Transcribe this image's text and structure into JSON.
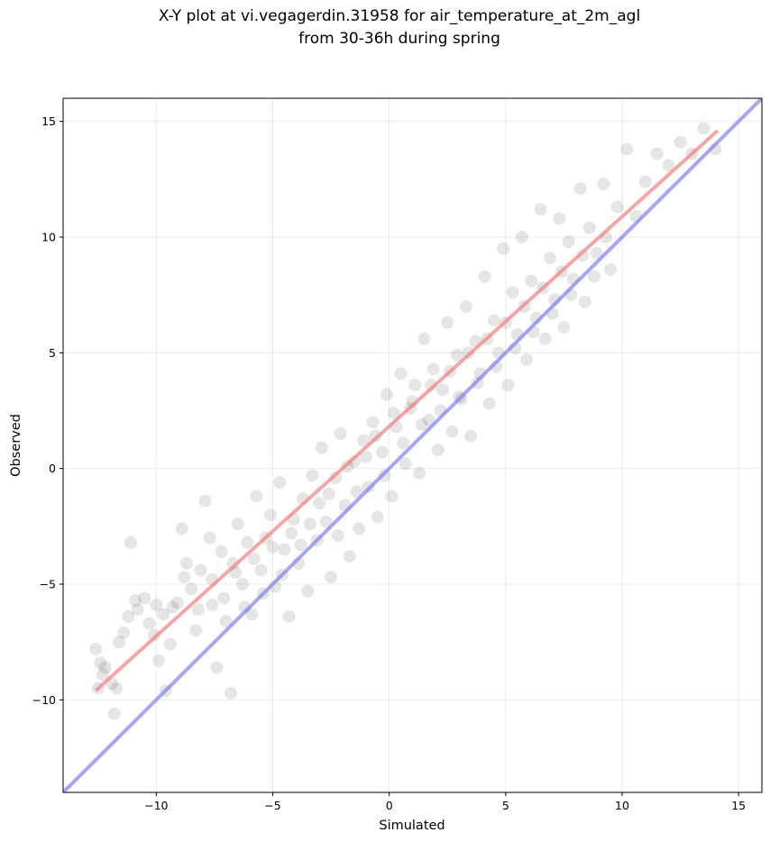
{
  "chart_data": {
    "type": "scatter",
    "title": "X-Y plot at vi.vegagerdin.31958 for air_temperature_at_2m_agl",
    "subtitle": "from 30-36h during spring",
    "xlabel": "Simulated",
    "ylabel": "Observed",
    "xlim": [
      -14,
      16
    ],
    "ylim": [
      -14,
      16
    ],
    "xticks": [
      -10,
      -5,
      0,
      5,
      10,
      15
    ],
    "yticks": [
      -10,
      -5,
      0,
      5,
      10,
      15
    ],
    "xtick_labels": [
      "−10",
      "−5",
      "0",
      "5",
      "10",
      "15"
    ],
    "ytick_labels": [
      "−10",
      "−5",
      "0",
      "5",
      "10",
      "15"
    ],
    "grid": true,
    "colors": {
      "points": "#000000",
      "fit_line": "#f08080",
      "identity_line": "#8080f0"
    },
    "fit_line": {
      "x": [
        -12.6,
        14.1
      ],
      "y": [
        -9.6,
        14.6
      ]
    },
    "identity_line": {
      "x": [
        -14,
        16
      ],
      "y": [
        -14,
        16
      ]
    },
    "series": [
      {
        "points": [
          [
            -12.5,
            -9.5
          ],
          [
            -12.3,
            -8.9
          ],
          [
            -12.4,
            -8.4
          ],
          [
            -12.6,
            -7.8
          ],
          [
            -11.7,
            -9.5
          ],
          [
            -11.8,
            -10.6
          ],
          [
            -11.6,
            -7.5
          ],
          [
            -11.2,
            -6.4
          ],
          [
            -11.1,
            -3.2
          ],
          [
            -10.9,
            -5.7
          ],
          [
            -10.5,
            -5.6
          ],
          [
            -10.3,
            -6.7
          ],
          [
            -10.1,
            -7.2
          ],
          [
            -9.9,
            -8.3
          ],
          [
            -9.7,
            -6.3
          ],
          [
            -9.6,
            -9.6
          ],
          [
            -9.3,
            -6.0
          ],
          [
            -9.1,
            -5.8
          ],
          [
            -8.9,
            -2.6
          ],
          [
            -8.7,
            -4.1
          ],
          [
            -8.5,
            -5.2
          ],
          [
            -8.3,
            -7.0
          ],
          [
            -8.1,
            -4.4
          ],
          [
            -7.9,
            -1.4
          ],
          [
            -7.7,
            -3.0
          ],
          [
            -7.6,
            -5.9
          ],
          [
            -7.4,
            -8.6
          ],
          [
            -7.2,
            -3.6
          ],
          [
            -7.0,
            -6.6
          ],
          [
            -6.8,
            -9.7
          ],
          [
            -6.7,
            -4.1
          ],
          [
            -6.5,
            -2.4
          ],
          [
            -6.3,
            -5.0
          ],
          [
            -6.1,
            -3.2
          ],
          [
            -5.9,
            -6.3
          ],
          [
            -5.7,
            -1.2
          ],
          [
            -5.5,
            -4.4
          ],
          [
            -5.3,
            -3.0
          ],
          [
            -5.1,
            -2.0
          ],
          [
            -4.9,
            -5.1
          ],
          [
            -4.7,
            -0.6
          ],
          [
            -4.5,
            -3.5
          ],
          [
            -4.3,
            -6.4
          ],
          [
            -4.1,
            -2.2
          ],
          [
            -3.9,
            -4.1
          ],
          [
            -3.7,
            -1.3
          ],
          [
            -3.5,
            -5.3
          ],
          [
            -3.3,
            -0.3
          ],
          [
            -3.1,
            -3.1
          ],
          [
            -2.9,
            0.9
          ],
          [
            -2.7,
            -2.3
          ],
          [
            -2.5,
            -4.7
          ],
          [
            -2.3,
            -0.4
          ],
          [
            -2.1,
            1.5
          ],
          [
            -1.9,
            -1.6
          ],
          [
            -1.7,
            -3.8
          ],
          [
            -1.5,
            0.3
          ],
          [
            -1.3,
            -2.6
          ],
          [
            -1.1,
            1.2
          ],
          [
            -0.9,
            -0.8
          ],
          [
            -0.7,
            2.0
          ],
          [
            -0.5,
            -2.1
          ],
          [
            -0.3,
            0.7
          ],
          [
            -0.1,
            3.2
          ],
          [
            0.1,
            -1.2
          ],
          [
            0.3,
            1.8
          ],
          [
            0.5,
            4.1
          ],
          [
            0.7,
            0.2
          ],
          [
            0.9,
            2.6
          ],
          [
            1.1,
            3.6
          ],
          [
            1.3,
            -0.2
          ],
          [
            1.5,
            5.6
          ],
          [
            1.7,
            2.1
          ],
          [
            1.9,
            4.3
          ],
          [
            2.1,
            0.8
          ],
          [
            2.3,
            3.4
          ],
          [
            2.5,
            6.3
          ],
          [
            2.7,
            1.6
          ],
          [
            2.9,
            4.9
          ],
          [
            3.1,
            3.0
          ],
          [
            3.3,
            7.0
          ],
          [
            3.5,
            1.4
          ],
          [
            3.7,
            5.5
          ],
          [
            3.9,
            4.1
          ],
          [
            4.1,
            8.3
          ],
          [
            4.3,
            2.8
          ],
          [
            4.5,
            6.4
          ],
          [
            4.7,
            5.0
          ],
          [
            4.9,
            9.5
          ],
          [
            5.1,
            3.6
          ],
          [
            5.3,
            7.6
          ],
          [
            5.5,
            5.8
          ],
          [
            5.7,
            10.0
          ],
          [
            5.9,
            4.7
          ],
          [
            6.1,
            8.1
          ],
          [
            6.3,
            6.5
          ],
          [
            6.5,
            11.2
          ],
          [
            6.7,
            5.6
          ],
          [
            6.9,
            9.1
          ],
          [
            7.1,
            7.3
          ],
          [
            7.3,
            10.8
          ],
          [
            7.5,
            6.1
          ],
          [
            7.7,
            9.8
          ],
          [
            7.9,
            8.2
          ],
          [
            8.2,
            12.1
          ],
          [
            8.4,
            7.2
          ],
          [
            8.6,
            10.4
          ],
          [
            8.9,
            9.3
          ],
          [
            9.2,
            12.3
          ],
          [
            9.5,
            8.6
          ],
          [
            9.8,
            11.3
          ],
          [
            10.2,
            13.8
          ],
          [
            10.6,
            10.9
          ],
          [
            11.0,
            12.4
          ],
          [
            11.5,
            13.6
          ],
          [
            12.0,
            13.1
          ],
          [
            12.5,
            14.1
          ],
          [
            13.0,
            13.6
          ],
          [
            13.5,
            14.7
          ],
          [
            14.0,
            13.8
          ],
          [
            -12.2,
            -8.6
          ],
          [
            -11.9,
            -9.3
          ],
          [
            -11.4,
            -7.1
          ],
          [
            -10.8,
            -6.1
          ],
          [
            -10.0,
            -5.9
          ],
          [
            -9.4,
            -7.6
          ],
          [
            -8.8,
            -4.7
          ],
          [
            -8.2,
            -6.1
          ],
          [
            -7.6,
            -4.8
          ],
          [
            -7.1,
            -5.6
          ],
          [
            -6.6,
            -4.5
          ],
          [
            -6.2,
            -6.0
          ],
          [
            -5.8,
            -3.9
          ],
          [
            -5.4,
            -5.4
          ],
          [
            -5.0,
            -3.4
          ],
          [
            -4.6,
            -4.6
          ],
          [
            -4.2,
            -2.8
          ],
          [
            -3.8,
            -3.3
          ],
          [
            -3.4,
            -2.4
          ],
          [
            -3.0,
            -1.5
          ],
          [
            -2.6,
            -1.1
          ],
          [
            -2.2,
            -2.9
          ],
          [
            -1.8,
            0.1
          ],
          [
            -1.4,
            -1.0
          ],
          [
            -1.0,
            0.5
          ],
          [
            -0.6,
            1.4
          ],
          [
            -0.2,
            -0.3
          ],
          [
            0.2,
            2.4
          ],
          [
            0.6,
            1.1
          ],
          [
            1.0,
            2.9
          ],
          [
            1.4,
            1.9
          ],
          [
            1.8,
            3.6
          ],
          [
            2.2,
            2.5
          ],
          [
            2.6,
            4.2
          ],
          [
            3.0,
            3.1
          ],
          [
            3.4,
            5.0
          ],
          [
            3.8,
            3.7
          ],
          [
            4.2,
            5.6
          ],
          [
            4.6,
            4.4
          ],
          [
            5.0,
            6.3
          ],
          [
            5.4,
            5.2
          ],
          [
            5.8,
            7.0
          ],
          [
            6.2,
            5.9
          ],
          [
            6.6,
            7.8
          ],
          [
            7.0,
            6.7
          ],
          [
            7.4,
            8.5
          ],
          [
            7.8,
            7.5
          ],
          [
            8.3,
            9.2
          ],
          [
            8.8,
            8.3
          ],
          [
            9.3,
            10.0
          ]
        ]
      }
    ]
  }
}
